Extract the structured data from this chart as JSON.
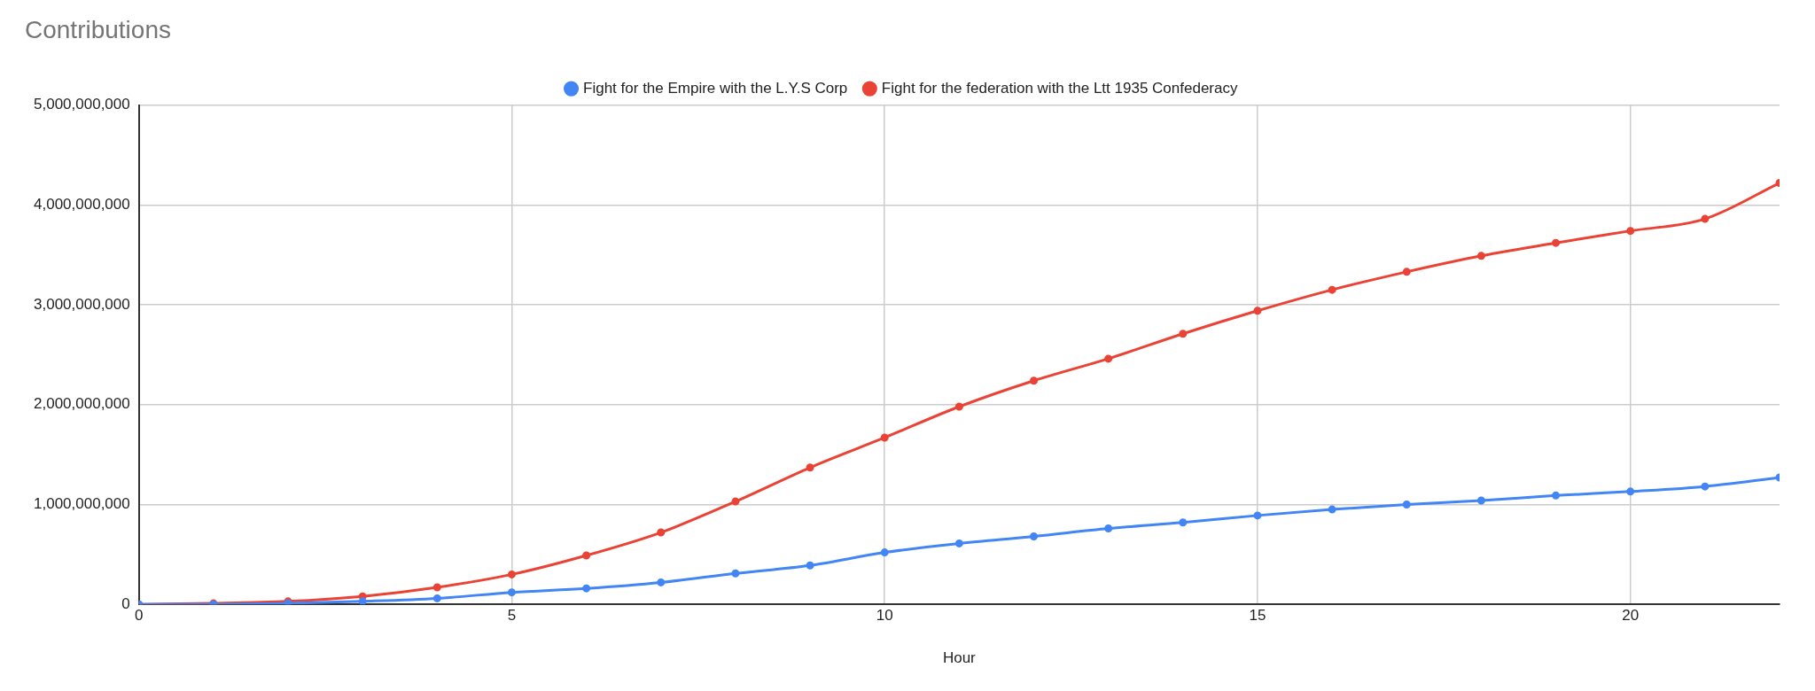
{
  "chart_data": {
    "type": "line",
    "title": "Contributions",
    "xlabel": "Hour",
    "x": [
      0,
      1,
      2,
      3,
      4,
      5,
      6,
      7,
      8,
      9,
      10,
      11,
      12,
      13,
      14,
      15,
      16,
      17,
      18,
      19,
      20,
      21,
      22
    ],
    "series": [
      {
        "name": "Fight for the Empire with the L.Y.S Corp",
        "color": "#4285f4",
        "values": [
          0,
          0,
          10000000,
          30000000,
          60000000,
          120000000,
          160000000,
          220000000,
          310000000,
          390000000,
          520000000,
          610000000,
          680000000,
          760000000,
          820000000,
          890000000,
          950000000,
          1000000000,
          1040000000,
          1090000000,
          1130000000,
          1180000000,
          1270000000
        ]
      },
      {
        "name": "Fight for the federation with the Ltt 1935 Confederacy",
        "color": "#ea4335",
        "values": [
          0,
          10000000,
          30000000,
          80000000,
          170000000,
          300000000,
          490000000,
          720000000,
          1030000000,
          1370000000,
          1670000000,
          1980000000,
          2240000000,
          2460000000,
          2710000000,
          2940000000,
          3150000000,
          3330000000,
          3490000000,
          3620000000,
          3740000000,
          3860000000,
          4220000000
        ]
      }
    ],
    "xlim": [
      0,
      22
    ],
    "xticks": [
      0,
      5,
      10,
      15,
      20
    ],
    "ylim": [
      0,
      5000000000
    ],
    "yticks": [
      0,
      {
        "value": 1000000000,
        "label": "1,000,000,000"
      },
      {
        "value": 2000000000,
        "label": "2,000,000,000"
      },
      {
        "value": 3000000000,
        "label": "3,000,000,000"
      },
      {
        "value": 4000000000,
        "label": "4,000,000,000"
      },
      {
        "value": 5000000000,
        "label": "5,000,000,000"
      }
    ],
    "grid": true,
    "legend": "top",
    "marker": "circle",
    "line_style": "solid"
  }
}
